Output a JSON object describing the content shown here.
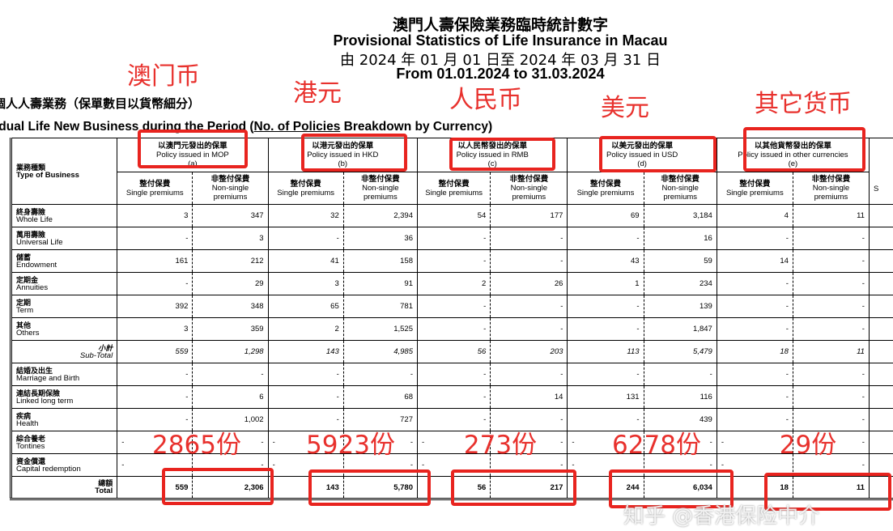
{
  "header": {
    "title_zh": "澳門人壽保險業務臨時統計數字",
    "title_en": "Provisional Statistics of Life Insurance in Macau",
    "period_zh": "由 2024 年 01 月 01 日至 2024 年 03 月 31 日",
    "period_en": "From 01.01.2024 to 31.03.2024"
  },
  "section": {
    "title_zh": "個人人壽業務（保單數目以貨幣細分）",
    "title_en_a": "idual Life New Business during the Period (",
    "title_en_u": "No. of Policies",
    "title_en_b": " Breakdown by Currency)"
  },
  "table": {
    "type_header_zh": "業務種類",
    "type_header_en": "Type of Business",
    "currencies": [
      {
        "zh": "以澳門元發出的保單",
        "en": "Policy issued in MOP",
        "code": "(a)"
      },
      {
        "zh": "以港元發出的保單",
        "en": "Policy issued in HKD",
        "code": "(b)"
      },
      {
        "zh": "以人民幣發出的保單",
        "en": "Policy issued in RMB",
        "code": "(c)"
      },
      {
        "zh": "以美元發出的保單",
        "en": "Policy issued in USD",
        "code": "(d)"
      },
      {
        "zh": "以其他貨幣發出的保單",
        "en": "Policy issued in other currencies",
        "code": "(e)"
      }
    ],
    "single_zh": "整付保費",
    "single_en": "Single premiums",
    "nonsingle_zh": "非整付保費",
    "nonsingle_en": "Non-single premiums",
    "extra_col_partial": "S",
    "rows": [
      {
        "zh": "終身壽險",
        "en": "Whole Life",
        "v": [
          "3",
          "347",
          "32",
          "2,394",
          "54",
          "177",
          "69",
          "3,184",
          "4",
          "11"
        ]
      },
      {
        "zh": "萬用壽險",
        "en": "Universal Life",
        "v": [
          "-",
          "3",
          "-",
          "36",
          "-",
          "-",
          "-",
          "16",
          "-",
          "-"
        ]
      },
      {
        "zh": "儲蓄",
        "en": "Endowment",
        "v": [
          "161",
          "212",
          "41",
          "158",
          "-",
          "-",
          "43",
          "59",
          "14",
          "-"
        ]
      },
      {
        "zh": "定期金",
        "en": "Annuities",
        "v": [
          "-",
          "29",
          "3",
          "91",
          "2",
          "26",
          "1",
          "234",
          "-",
          "-"
        ]
      },
      {
        "zh": "定期",
        "en": "Term",
        "v": [
          "392",
          "348",
          "65",
          "781",
          "-",
          "-",
          "-",
          "139",
          "-",
          "-"
        ]
      },
      {
        "zh": "其他",
        "en": "Others",
        "v": [
          "3",
          "359",
          "2",
          "1,525",
          "-",
          "-",
          "-",
          "1,847",
          "-",
          "-"
        ]
      },
      {
        "zh": "小計",
        "en": "Sub-Total",
        "kind": "subtotal",
        "v": [
          "559",
          "1,298",
          "143",
          "4,985",
          "56",
          "203",
          "113",
          "5,479",
          "18",
          "11"
        ]
      },
      {
        "zh": "結婚及出生",
        "en": "Marriage and Birth",
        "v": [
          "-",
          "-",
          "-",
          "-",
          "-",
          "-",
          "-",
          "-",
          "-",
          "-"
        ]
      },
      {
        "zh": "連結長期保險",
        "en": "Linked long term",
        "v": [
          "-",
          "6",
          "-",
          "68",
          "-",
          "14",
          "131",
          "116",
          "-",
          "-"
        ]
      },
      {
        "zh": "疾病",
        "en": "Health",
        "v": [
          "-",
          "1,002",
          "-",
          "727",
          "-",
          "-",
          "-",
          "439",
          "-",
          "-"
        ]
      },
      {
        "zh": "綜合養老",
        "en": "Tontines",
        "v": [
          "-",
          "-",
          "-",
          "-",
          "-",
          "-",
          "-",
          "-",
          "-",
          "-"
        ]
      },
      {
        "zh": "資金償還",
        "en": "Capital redemption",
        "v": [
          "-",
          "-",
          "-",
          "-",
          "-",
          "-",
          "-",
          "-",
          "-",
          "-"
        ]
      },
      {
        "zh": "總額",
        "en": "Total",
        "kind": "total",
        "v": [
          "559",
          "2,306",
          "143",
          "5,780",
          "56",
          "217",
          "244",
          "6,034",
          "18",
          "11"
        ]
      }
    ]
  },
  "annotations": {
    "color": "#e8312d",
    "currency_labels": [
      "澳门币",
      "港元",
      "人民币",
      "美元",
      "其它货币"
    ],
    "totals": [
      "2865份",
      "5923份",
      "273份",
      "6278份",
      "29份"
    ]
  },
  "watermark": "知乎 @香港保险中介"
}
